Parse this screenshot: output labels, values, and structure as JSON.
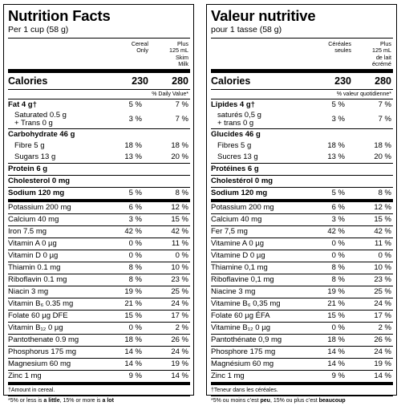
{
  "en": {
    "title": "Nutrition Facts",
    "serving": "Per 1 cup (58 g)",
    "col1": "Cereal\nOnly",
    "col2": "Plus\n125 mL\nSkim\nMilk",
    "calories_label": "Calories",
    "calories_v1": "230",
    "calories_v2": "280",
    "dv_header": "% Daily Value*",
    "rows": [
      {
        "label": "Fat 4 g†",
        "v1": "5 %",
        "v2": "7 %"
      },
      {
        "label": "Saturated 0.5 g",
        "label2": "+ Trans 0 g",
        "v1": "3 %",
        "v2": "7 %"
      },
      {
        "label": "Carbohydrate 46 g"
      },
      {
        "label": "Fibre 5 g",
        "v1": "18 %",
        "v2": "18 %"
      },
      {
        "label": "Sugars 13 g",
        "v1": "13 %",
        "v2": "20 %"
      },
      {
        "label": "Protein 6 g"
      },
      {
        "label": "Cholesterol 0 mg"
      },
      {
        "label": "Sodium 120 mg",
        "v1": "5 %",
        "v2": "8 %"
      },
      {
        "label": "Potassium 200 mg",
        "v1": "6 %",
        "v2": "12 %"
      },
      {
        "label": "Calcium 40 mg",
        "v1": "3 %",
        "v2": "15 %"
      },
      {
        "label": "Iron 7.5 mg",
        "v1": "42 %",
        "v2": "42 %"
      },
      {
        "label": "Vitamin A 0 µg",
        "v1": "0 %",
        "v2": "11 %"
      },
      {
        "label": "Vitamin D 0 µg",
        "v1": "0 %",
        "v2": "0 %"
      },
      {
        "label": "Thiamin 0.1 mg",
        "v1": "8 %",
        "v2": "10 %"
      },
      {
        "label": "Riboflavin 0.1 mg",
        "v1": "8 %",
        "v2": "23 %"
      },
      {
        "label": "Niacin 3 mg",
        "v1": "19 %",
        "v2": "25 %"
      },
      {
        "label": "Vitamin B₆ 0.35 mg",
        "v1": "21 %",
        "v2": "24 %"
      },
      {
        "label": "Folate 60 µg DFE",
        "v1": "15 %",
        "v2": "17 %"
      },
      {
        "label": "Vitamin B₁₂ 0 µg",
        "v1": "0 %",
        "v2": "2 %"
      },
      {
        "label": "Pantothenate 0.9 mg",
        "v1": "18 %",
        "v2": "26 %"
      },
      {
        "label": "Phosphorus 175 mg",
        "v1": "14 %",
        "v2": "24 %"
      },
      {
        "label": "Magnesium 60 mg",
        "v1": "14 %",
        "v2": "19 %"
      },
      {
        "label": "Zinc 1 mg",
        "v1": "9 %",
        "v2": "14 %"
      }
    ],
    "foot1": "†Amount in cereal.",
    "foot2_a": "*5% or less is ",
    "foot2_b": "a little",
    "foot2_c": ", 15% or more is ",
    "foot2_d": "a lot"
  },
  "fr": {
    "title": "Valeur nutritive",
    "serving": "pour 1 tasse (58 g)",
    "col1": "Céréales\nseules",
    "col2": "Plus\n125 mL\nde lait\nécrémé",
    "calories_label": "Calories",
    "calories_v1": "230",
    "calories_v2": "280",
    "dv_header": "% valeur quotidienne*",
    "rows": [
      {
        "label": "Lipides 4 g†",
        "v1": "5 %",
        "v2": "7 %"
      },
      {
        "label": "saturés 0,5 g",
        "label2": "+ trans 0 g",
        "v1": "3 %",
        "v2": "7 %"
      },
      {
        "label": "Glucides 46 g"
      },
      {
        "label": "Fibres 5 g",
        "v1": "18 %",
        "v2": "18 %"
      },
      {
        "label": "Sucres 13 g",
        "v1": "13 %",
        "v2": "20 %"
      },
      {
        "label": "Protéines 6 g"
      },
      {
        "label": "Cholestérol 0 mg"
      },
      {
        "label": "Sodium 120 mg",
        "v1": "5 %",
        "v2": "8 %"
      },
      {
        "label": "Potassium 200 mg",
        "v1": "6 %",
        "v2": "12 %"
      },
      {
        "label": "Calcium 40 mg",
        "v1": "3 %",
        "v2": "15 %"
      },
      {
        "label": "Fer 7,5 mg",
        "v1": "42 %",
        "v2": "42 %"
      },
      {
        "label": "Vitamine A 0 µg",
        "v1": "0 %",
        "v2": "11 %"
      },
      {
        "label": "Vitamine D 0 µg",
        "v1": "0 %",
        "v2": "0 %"
      },
      {
        "label": "Thiamine 0,1 mg",
        "v1": "8 %",
        "v2": "10 %"
      },
      {
        "label": "Riboflavine 0,1 mg",
        "v1": "8 %",
        "v2": "23 %"
      },
      {
        "label": "Niacine 3 mg",
        "v1": "19 %",
        "v2": "25 %"
      },
      {
        "label": "Vitamine B₆ 0,35 mg",
        "v1": "21 %",
        "v2": "24 %"
      },
      {
        "label": "Folate 60 µg ÉFA",
        "v1": "15 %",
        "v2": "17 %"
      },
      {
        "label": "Vitamine B₁₂ 0 µg",
        "v1": "0 %",
        "v2": "2 %"
      },
      {
        "label": "Pantothénate 0,9 mg",
        "v1": "18 %",
        "v2": "26 %"
      },
      {
        "label": "Phosphore 175 mg",
        "v1": "14 %",
        "v2": "24 %"
      },
      {
        "label": "Magnésium 60 mg",
        "v1": "14 %",
        "v2": "19 %"
      },
      {
        "label": "Zinc 1 mg",
        "v1": "9 %",
        "v2": "14 %"
      }
    ],
    "foot1": "†Teneur dans les céréales.",
    "foot2_a": "*5% ou moins c’est ",
    "foot2_b": "peu",
    "foot2_c": ", 15% ou plus c’est ",
    "foot2_d": "beaucoup"
  }
}
